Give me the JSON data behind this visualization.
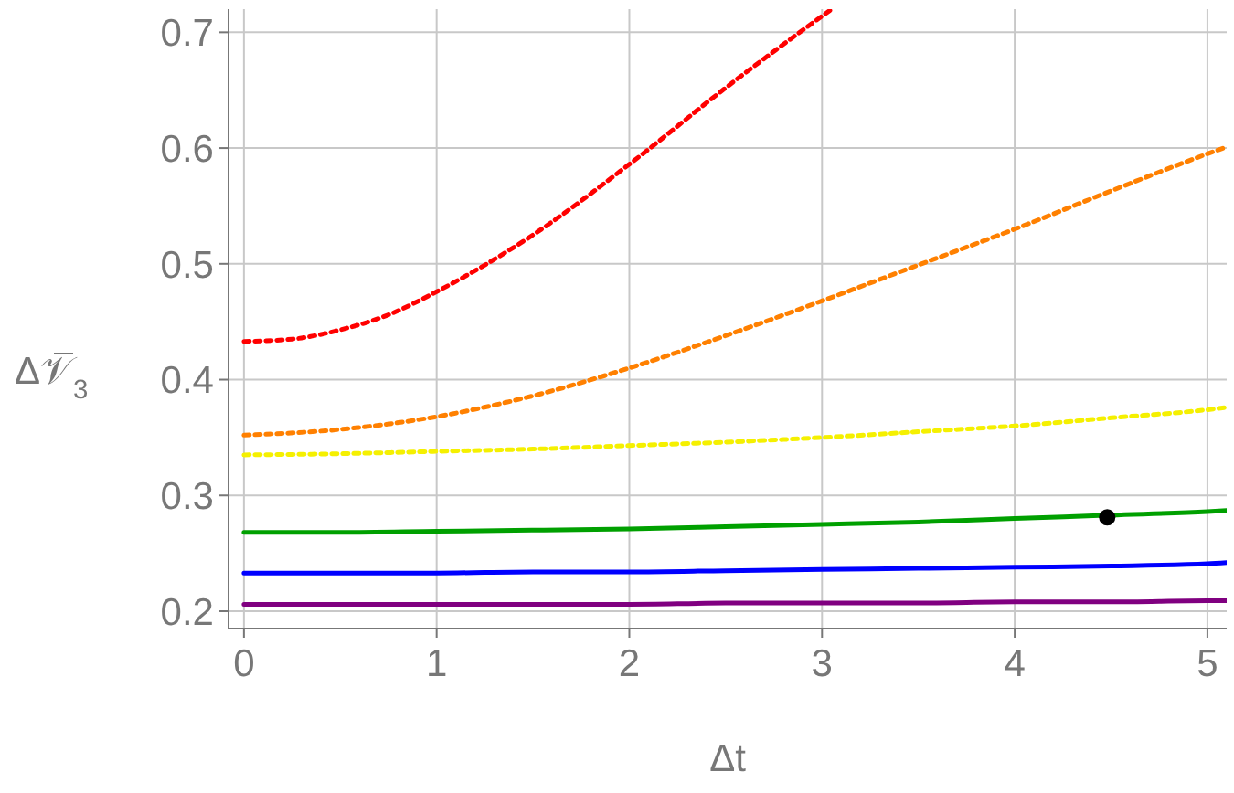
{
  "chart_data": {
    "type": "line",
    "xlabel": "Δt",
    "ylabel": "Δ𝒱̅$_{3}$",
    "xlim": [
      -0.08,
      5.1
    ],
    "ylim": [
      0.185,
      0.72
    ],
    "xticks": [
      0,
      1,
      2,
      3,
      4,
      5
    ],
    "yticks": [
      0.2,
      0.3,
      0.4,
      0.5,
      0.6,
      0.7
    ],
    "grid": true,
    "marker": "none",
    "x": [
      0,
      0.5,
      1,
      1.5,
      2,
      2.5,
      3,
      3.5,
      4,
      4.5,
      5,
      5.1
    ],
    "series": [
      {
        "color": "#ff0000",
        "line_style": "dotted",
        "x": [
          0,
          0.25,
          0.5,
          0.75,
          1,
          1.5,
          2,
          2.5,
          3,
          3.05
        ],
        "values": [
          0.433,
          0.435,
          0.443,
          0.456,
          0.476,
          0.525,
          0.586,
          0.652,
          0.714,
          0.72
        ]
      },
      {
        "color": "#ff8000",
        "line_style": "dotted",
        "values": [
          0.352,
          0.357,
          0.368,
          0.386,
          0.41,
          0.438,
          0.468,
          0.499,
          0.53,
          0.563,
          0.595,
          0.601
        ]
      },
      {
        "color": "#f5f000",
        "line_style": "dotted",
        "values": [
          0.335,
          0.336,
          0.338,
          0.34,
          0.343,
          0.346,
          0.35,
          0.355,
          0.36,
          0.367,
          0.374,
          0.376
        ]
      },
      {
        "color": "#00a000",
        "line_style": "solid",
        "values": [
          0.268,
          0.268,
          0.269,
          0.27,
          0.271,
          0.273,
          0.275,
          0.277,
          0.28,
          0.283,
          0.286,
          0.287
        ]
      },
      {
        "color": "#0000ff",
        "line_style": "solid",
        "values": [
          0.233,
          0.233,
          0.233,
          0.234,
          0.234,
          0.235,
          0.236,
          0.237,
          0.238,
          0.239,
          0.241,
          0.242
        ]
      },
      {
        "color": "#800080",
        "line_style": "solid",
        "values": [
          0.206,
          0.206,
          0.206,
          0.206,
          0.206,
          0.207,
          0.207,
          0.207,
          0.208,
          0.208,
          0.209,
          0.209
        ]
      },
      {
        "type": "scatter",
        "marker": "circle",
        "color": "#000000",
        "x": [
          4.48
        ],
        "values": [
          0.281
        ]
      }
    ]
  }
}
